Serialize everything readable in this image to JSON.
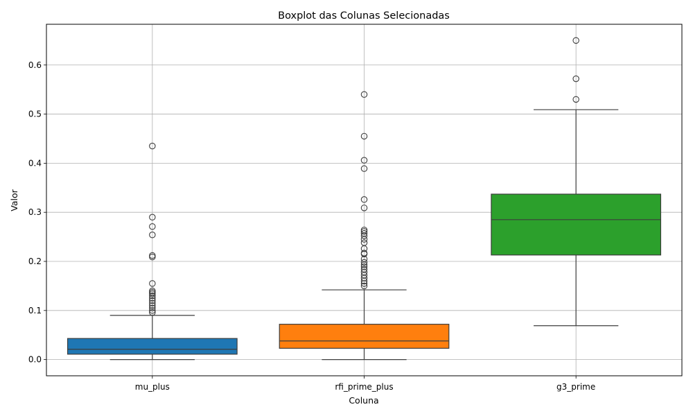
{
  "chart_data": {
    "type": "boxplot",
    "title": "Boxplot das Colunas Selecionadas",
    "xlabel": "Coluna",
    "ylabel": "Valor",
    "ylim": [
      -0.033,
      0.683
    ],
    "yticks": [
      0.0,
      0.1,
      0.2,
      0.3,
      0.4,
      0.5,
      0.6
    ],
    "ytick_labels": [
      "0.0",
      "0.1",
      "0.2",
      "0.3",
      "0.4",
      "0.5",
      "0.6"
    ],
    "grid": true,
    "categories": [
      "mu_plus",
      "rfi_prime_plus",
      "g3_prime"
    ],
    "series": [
      {
        "category": "mu_plus",
        "color": "#1f77b4",
        "whisker_low": 0.0,
        "q1": 0.011,
        "median": 0.021,
        "q3": 0.043,
        "whisker_high": 0.09,
        "outliers": [
          0.435,
          0.29,
          0.271,
          0.254,
          0.212,
          0.209,
          0.155,
          0.14,
          0.137,
          0.134,
          0.13,
          0.125,
          0.12,
          0.115,
          0.11,
          0.105,
          0.1,
          0.096
        ]
      },
      {
        "category": "rfi_prime_plus",
        "color": "#ff7f0e",
        "whisker_low": 0.0,
        "q1": 0.023,
        "median": 0.038,
        "q3": 0.072,
        "whisker_high": 0.142,
        "outliers": [
          0.54,
          0.455,
          0.406,
          0.389,
          0.326,
          0.309,
          0.264,
          0.261,
          0.257,
          0.252,
          0.245,
          0.238,
          0.226,
          0.217,
          0.215,
          0.205,
          0.198,
          0.193,
          0.189,
          0.184,
          0.178,
          0.172,
          0.166,
          0.16,
          0.155,
          0.15
        ]
      },
      {
        "category": "g3_prime",
        "color": "#2ca02c",
        "whisker_low": 0.069,
        "q1": 0.213,
        "median": 0.285,
        "q3": 0.337,
        "whisker_high": 0.509,
        "outliers": [
          0.65,
          0.572,
          0.53
        ]
      }
    ]
  }
}
